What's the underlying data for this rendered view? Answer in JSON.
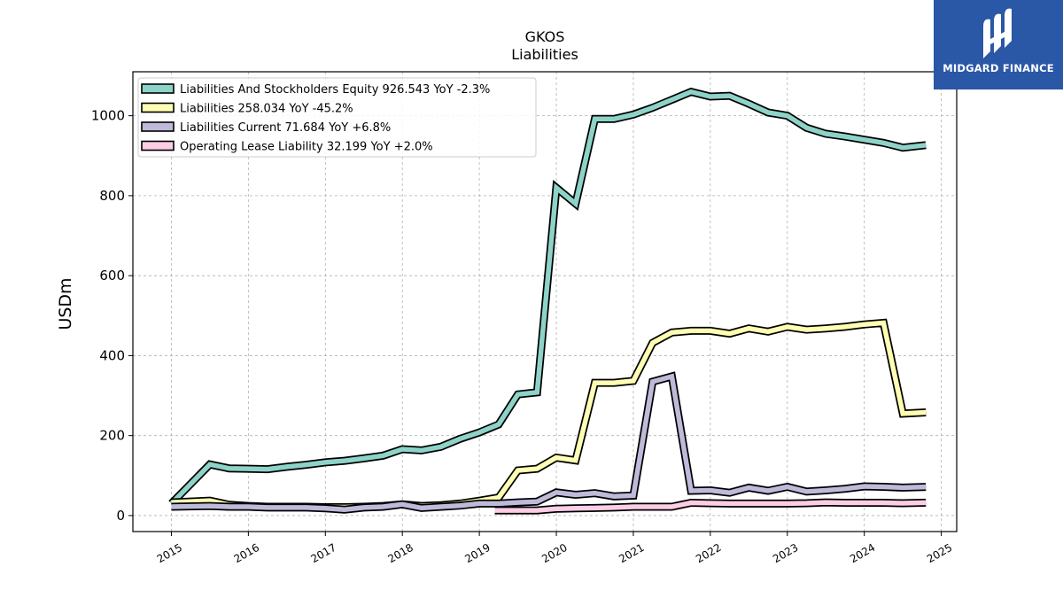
{
  "chart_data": {
    "type": "line",
    "title": "GKOS",
    "subtitle": "Liabilities",
    "ylabel": "USDm",
    "xlabel": "",
    "ylim": [
      -40,
      1110
    ],
    "xlim": [
      2014.5,
      2025.2
    ],
    "yticks": [
      0,
      200,
      400,
      600,
      800,
      1000
    ],
    "xticks": [
      2015,
      2016,
      2017,
      2018,
      2019,
      2020,
      2021,
      2022,
      2023,
      2024,
      2025
    ],
    "xtick_labels": [
      "2015",
      "2016",
      "2017",
      "2018",
      "2019",
      "2020",
      "2021",
      "2022",
      "2023",
      "2024",
      "2025"
    ],
    "grid": true,
    "legend_position": "top-left",
    "series": [
      {
        "name": "Liabilities And Stockholders Equity",
        "legend_label": "Liabilities And Stockholders Equity  926.543 YoY -2.3%",
        "color": "#8dd3c7",
        "x": [
          2015.0,
          2015.5,
          2015.75,
          2016.0,
          2016.25,
          2016.5,
          2016.75,
          2017.0,
          2017.25,
          2017.5,
          2017.75,
          2018.0,
          2018.25,
          2018.5,
          2018.75,
          2019.0,
          2019.25,
          2019.5,
          2019.75,
          2020.0,
          2020.25,
          2020.5,
          2020.75,
          2021.0,
          2021.25,
          2021.5,
          2021.75,
          2022.0,
          2022.25,
          2022.5,
          2022.75,
          2023.0,
          2023.25,
          2023.5,
          2023.75,
          2024.0,
          2024.25,
          2024.5,
          2024.8
        ],
        "y": [
          30,
          128,
          118,
          117,
          116,
          122,
          127,
          133,
          137,
          143,
          150,
          166,
          163,
          172,
          192,
          208,
          228,
          303,
          308,
          820,
          780,
          992,
          992,
          1003,
          1020,
          1040,
          1060,
          1048,
          1050,
          1030,
          1008,
          1000,
          970,
          955,
          948,
          940,
          932,
          920,
          926.543
        ]
      },
      {
        "name": "Liabilities",
        "legend_label": "Liabilities  258.034 YoY -45.2%",
        "color": "#ffffb3",
        "x": [
          2015.0,
          2015.5,
          2015.75,
          2016.0,
          2016.25,
          2016.5,
          2016.75,
          2017.0,
          2017.25,
          2017.5,
          2017.75,
          2018.0,
          2018.25,
          2018.5,
          2018.75,
          2019.0,
          2019.25,
          2019.5,
          2019.75,
          2020.0,
          2020.25,
          2020.5,
          2020.75,
          2021.0,
          2021.25,
          2021.5,
          2021.75,
          2022.0,
          2022.25,
          2022.5,
          2022.75,
          2023.0,
          2023.25,
          2023.5,
          2023.75,
          2024.0,
          2024.25,
          2024.5,
          2024.8
        ],
        "y": [
          33,
          37,
          27,
          24,
          22,
          22,
          22,
          21,
          21,
          22,
          24,
          28,
          24,
          26,
          30,
          37,
          45,
          113,
          117,
          145,
          138,
          332,
          332,
          337,
          432,
          458,
          462,
          462,
          455,
          468,
          460,
          472,
          465,
          468,
          472,
          478,
          482,
          255,
          258.034
        ]
      },
      {
        "name": "Liabilities Current",
        "legend_label": "Liabilities Current  71.684 YoY +6.8%",
        "color": "#bebada",
        "x": [
          2015.0,
          2015.5,
          2015.75,
          2016.0,
          2016.25,
          2016.5,
          2016.75,
          2017.0,
          2017.25,
          2017.5,
          2017.75,
          2018.0,
          2018.25,
          2018.5,
          2018.75,
          2019.0,
          2019.25,
          2019.5,
          2019.75,
          2020.0,
          2020.25,
          2020.5,
          2020.75,
          2021.0,
          2021.25,
          2021.5,
          2021.75,
          2022.0,
          2022.25,
          2022.5,
          2022.75,
          2023.0,
          2023.25,
          2023.5,
          2023.75,
          2024.0,
          2024.25,
          2024.5,
          2024.8
        ],
        "y": [
          22,
          24,
          22,
          22,
          20,
          20,
          20,
          18,
          15,
          20,
          22,
          28,
          19,
          22,
          25,
          30,
          30,
          33,
          35,
          58,
          52,
          56,
          48,
          50,
          335,
          348,
          62,
          63,
          57,
          70,
          62,
          72,
          60,
          63,
          67,
          73,
          72,
          70,
          71.684
        ]
      },
      {
        "name": "Operating Lease Liability",
        "legend_label": "Operating Lease Liability  32.199 YoY +2.0%",
        "color": "#fccde5",
        "x": [
          2019.2,
          2019.5,
          2019.75,
          2020.0,
          2020.25,
          2020.5,
          2020.75,
          2021.0,
          2021.25,
          2021.5,
          2021.75,
          2022.0,
          2022.25,
          2022.5,
          2022.75,
          2023.0,
          2023.25,
          2023.5,
          2023.75,
          2024.0,
          2024.25,
          2024.5,
          2024.8
        ],
        "y": [
          13,
          13,
          13,
          17,
          18,
          19,
          20,
          22,
          22,
          22,
          32,
          31,
          30,
          30,
          30,
          30,
          31,
          33,
          32,
          32,
          32,
          31,
          32.199
        ]
      }
    ]
  },
  "logo": {
    "text": "MIDGARD FINANCE",
    "background": "#2a57a6"
  }
}
